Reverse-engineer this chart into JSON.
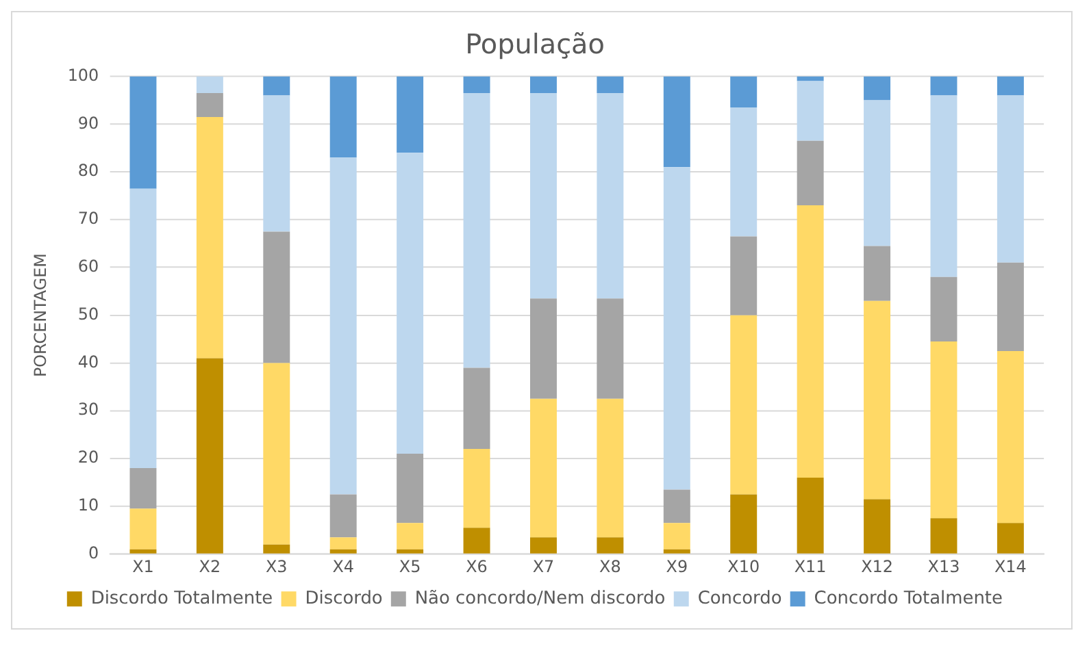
{
  "chart_data": {
    "type": "bar",
    "title": "População",
    "ylabel": "PORCENTAGEM",
    "stacked": true,
    "grid": "y",
    "legend": "bottom",
    "categories": [
      "X1",
      "X2",
      "X3",
      "X4",
      "X5",
      "X6",
      "X7",
      "X8",
      "X9",
      "X10",
      "X11",
      "X12",
      "X13",
      "X14"
    ],
    "ylim": [
      0,
      100
    ],
    "yticks": [
      0,
      10,
      20,
      30,
      40,
      50,
      60,
      70,
      80,
      90,
      100
    ],
    "series": [
      {
        "name": "Discordo Totalmente",
        "color": "#bf8f00",
        "values": [
          1,
          41,
          2,
          1,
          1,
          5.5,
          3.5,
          3.5,
          1,
          12.5,
          16,
          11.5,
          7.5,
          6.5
        ]
      },
      {
        "name": "Discordo",
        "color": "#ffd966",
        "values": [
          8.5,
          50.5,
          38,
          2.5,
          5.5,
          16.5,
          29,
          29,
          5.5,
          37.5,
          57,
          41.5,
          37,
          36
        ]
      },
      {
        "name": "Não concordo/Nem discordo",
        "color": "#a5a5a5",
        "values": [
          8.5,
          5,
          27.5,
          9,
          14.5,
          17,
          21,
          21,
          7,
          16.5,
          13.5,
          11.5,
          13.5,
          18.5
        ]
      },
      {
        "name": "Concordo",
        "color": "#bdd7ee",
        "values": [
          58.5,
          3.5,
          28.5,
          70.5,
          63,
          57.5,
          43,
          43,
          67.5,
          27,
          12.5,
          30.5,
          38,
          35
        ]
      },
      {
        "name": "Concordo Totalmente",
        "color": "#5b9bd5",
        "values": [
          23.5,
          0,
          4,
          17,
          16,
          3.5,
          3.5,
          3.5,
          19,
          6.5,
          1,
          5,
          4,
          4
        ]
      }
    ]
  }
}
